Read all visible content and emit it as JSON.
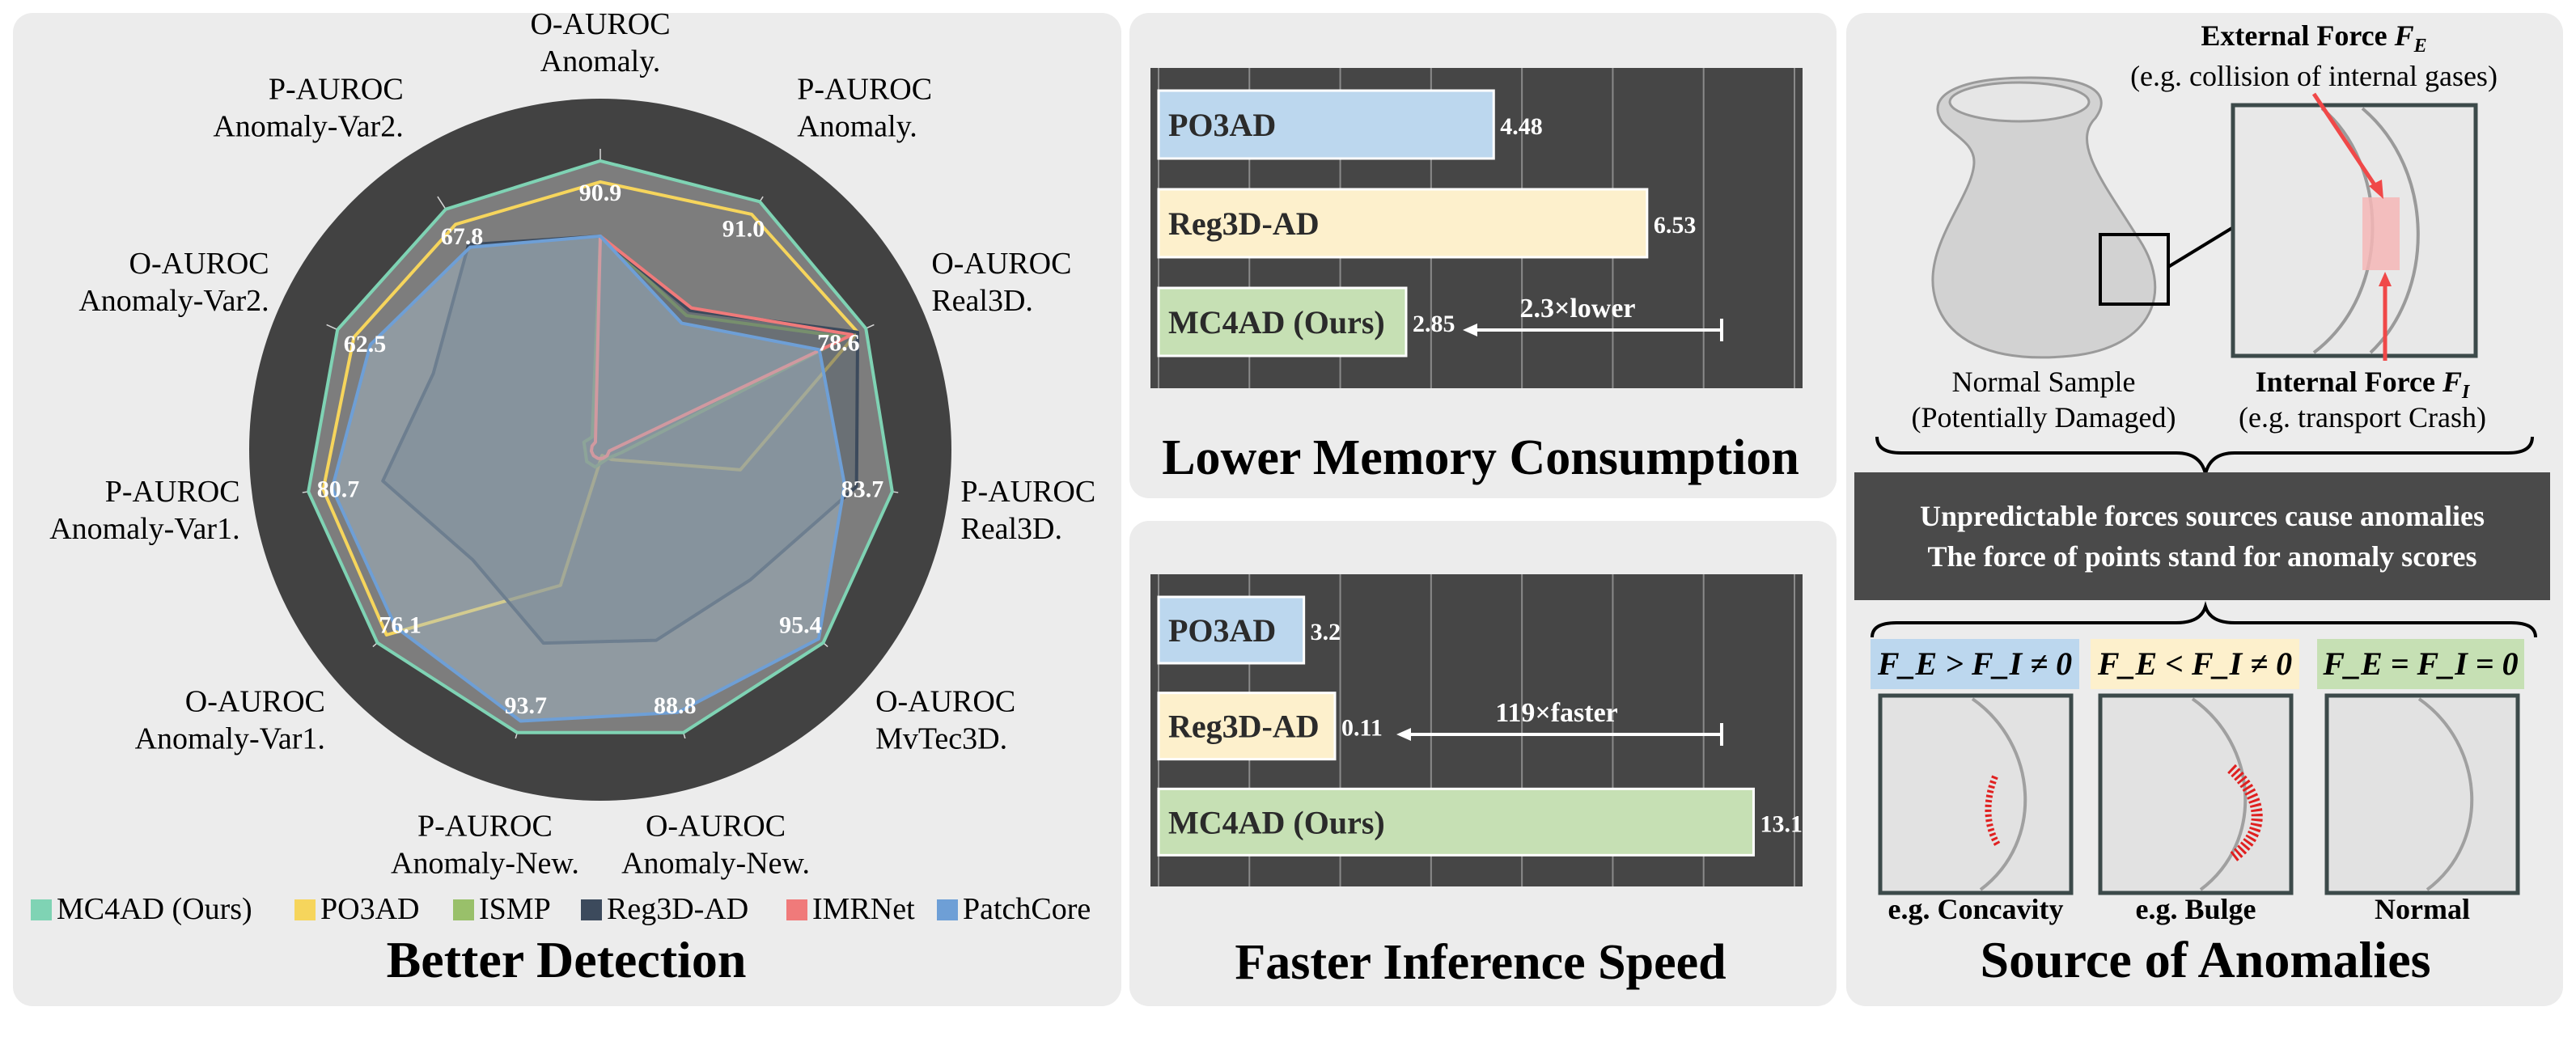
{
  "radar": {
    "type": "radar",
    "title": "Better Detection",
    "axes": [
      {
        "line1": "O-AUROC",
        "line2": "Anomaly.",
        "value_label": "90.9"
      },
      {
        "line1": "P-AUROC",
        "line2": "Anomaly.",
        "value_label": "91.0"
      },
      {
        "line1": "O-AUROC",
        "line2": "Real3D.",
        "value_label": "78.6"
      },
      {
        "line1": "P-AUROC",
        "line2": "Real3D.",
        "value_label": "83.7"
      },
      {
        "line1": "O-AUROC",
        "line2": "MvTec3D.",
        "value_label": "95.4"
      },
      {
        "line1": "O-AUROC",
        "line2": "Anomaly-New.",
        "value_label": "88.8"
      },
      {
        "line1": "P-AUROC",
        "line2": "Anomaly-New.",
        "value_label": "93.7"
      },
      {
        "line1": "O-AUROC",
        "line2": "Anomaly-Var1.",
        "value_label": "76.1"
      },
      {
        "line1": "P-AUROC",
        "line2": "Anomaly-Var1.",
        "value_label": "80.7"
      },
      {
        "line1": "O-AUROC",
        "line2": "Anomaly-Var2.",
        "value_label": "62.5"
      },
      {
        "line1": "P-AUROC",
        "line2": "Anomaly-Var2.",
        "value_label": "67.8"
      }
    ],
    "normalized_scores_0_to_1": true,
    "series": [
      {
        "name": "MC4AD (Ours)",
        "color": "#7fd3b4",
        "values": [
          0.96,
          0.98,
          0.97,
          0.98,
          0.98,
          0.98,
          0.98,
          0.98,
          0.98,
          0.96,
          0.95
        ]
      },
      {
        "name": "PO3AD",
        "color": "#f6d55c",
        "values": [
          0.89,
          0.93,
          0.94,
          0.47,
          0.05,
          0.02,
          0.47,
          0.94,
          0.93,
          0.9,
          0.89
        ]
      },
      {
        "name": "ISMP",
        "color": "#99c06a",
        "values": [
          0.71,
          0.53,
          0.9,
          0.07,
          0.04,
          0.04,
          0.06,
          0.06,
          0.05,
          0.06,
          0.05
        ]
      },
      {
        "name": "Reg3D-AD",
        "color": "#3c4a5c",
        "values": [
          0.71,
          0.55,
          0.94,
          0.86,
          0.66,
          0.66,
          0.67,
          0.56,
          0.73,
          0.61,
          0.81
        ]
      },
      {
        "name": "IMRNet",
        "color": "#f07a7a",
        "values": [
          0.71,
          0.56,
          0.92,
          0.03,
          0.03,
          0.03,
          0.03,
          0.03,
          0.03,
          0.03,
          0.03
        ]
      },
      {
        "name": "PatchCore",
        "color": "#6e9fd6",
        "values": [
          0.71,
          0.5,
          0.8,
          0.82,
          0.96,
          0.91,
          0.94,
          0.9,
          0.9,
          0.84,
          0.8
        ]
      }
    ]
  },
  "memory": {
    "type": "bar",
    "title": "Lower Memory Consumption",
    "categories": [
      "PO3AD",
      "Reg3D-AD",
      "MC4AD (Ours)"
    ],
    "values": [
      4.48,
      6.53,
      2.85
    ],
    "value_labels": [
      "4.48",
      "6.53",
      "2.85"
    ],
    "colors": [
      "#bcd7ee",
      "#fdf0cc",
      "#c6e0b4"
    ],
    "xlim": [
      0,
      8.5
    ],
    "annotation": "2.3×lower"
  },
  "speed": {
    "type": "bar",
    "title": "Faster Inference Speed",
    "categories": [
      "PO3AD",
      "Reg3D-AD",
      "MC4AD (Ours)"
    ],
    "values": [
      3.2,
      0.11,
      13.1
    ],
    "value_labels": [
      "3.2",
      "0.11",
      "13.1"
    ],
    "colors": [
      "#bcd7ee",
      "#fdf0cc",
      "#c6e0b4"
    ],
    "annotation": "119×faster"
  },
  "source": {
    "title": "Source of Anomalies",
    "external_label": "External Force",
    "external_symbol": "F",
    "external_sub": "E",
    "external_example": "(e.g. collision of internal gases)",
    "internal_label": "Internal Force",
    "internal_symbol": "F",
    "internal_sub": "I",
    "internal_example": "(e.g. transport Crash)",
    "normal_sample": "Normal Sample",
    "normal_sample_note": "(Potentially Damaged)",
    "banner_line1": "Unpredictable forces sources cause anomalies",
    "banner_line2": "The force of points stand for anomaly scores",
    "cases": [
      {
        "cond": "F_E > F_I ≠ 0",
        "caption": "e.g. Concavity",
        "bg": "#bcd7ee"
      },
      {
        "cond": "F_E < F_I ≠ 0",
        "caption": "e.g. Bulge",
        "bg": "#fdf0cc"
      },
      {
        "cond": "F_E = F_I = 0",
        "caption": "Normal",
        "bg": "#c6e0b4"
      }
    ]
  }
}
